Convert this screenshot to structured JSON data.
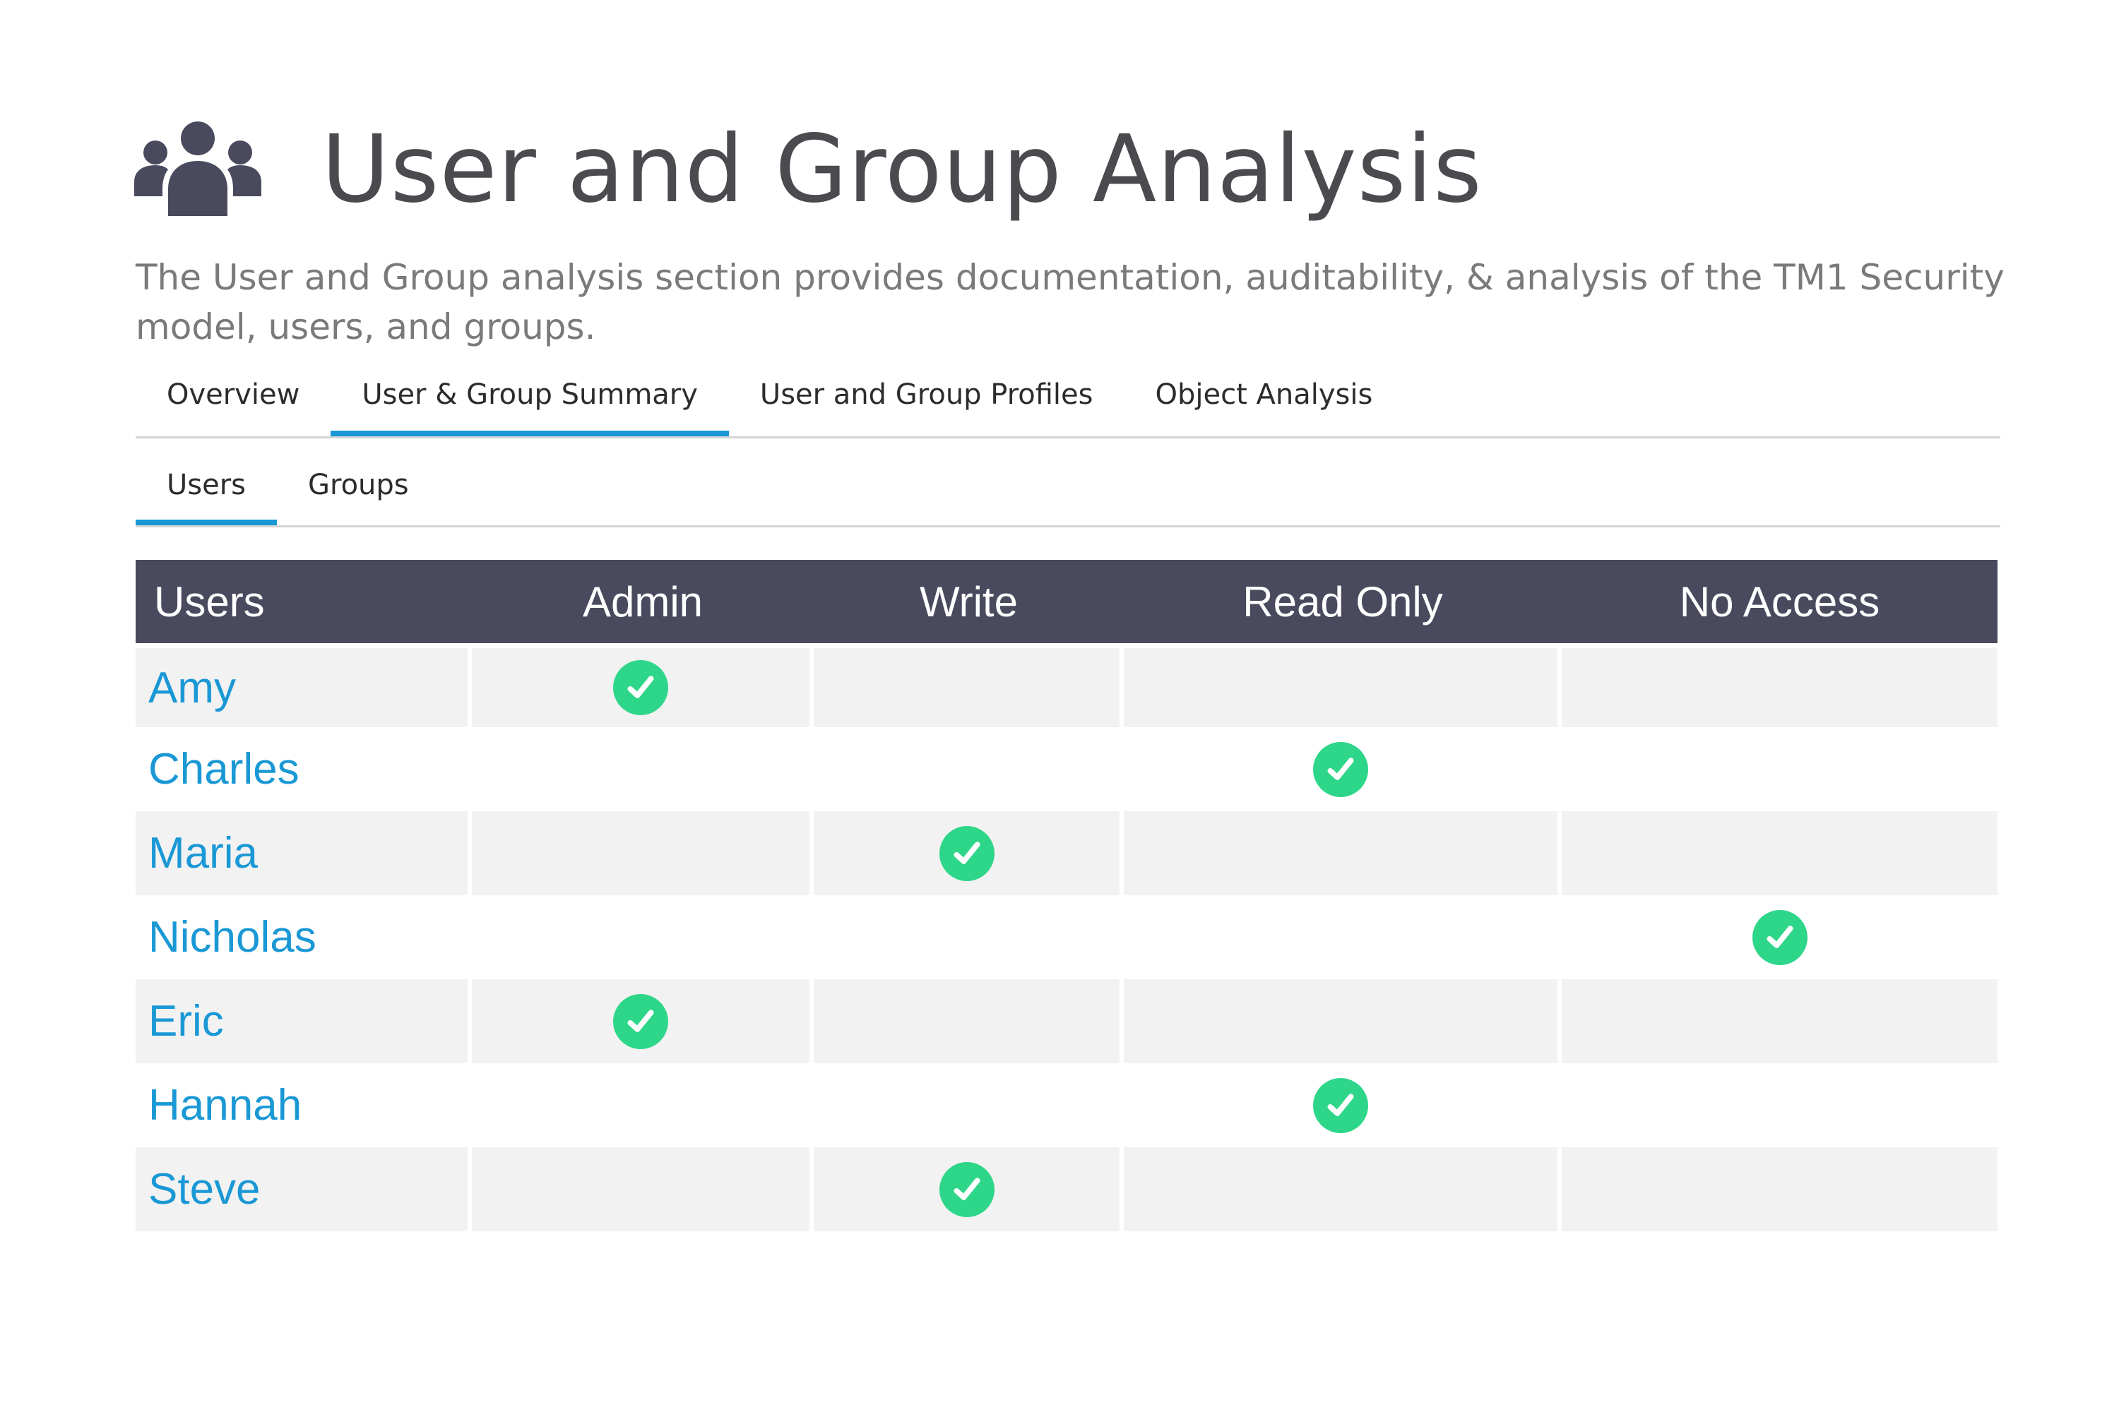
{
  "header": {
    "icon": "users-group-icon",
    "title": "User and Group Analysis",
    "description": "The User and Group analysis section provides documentation, auditability, & analysis of the TM1 Security model, users, and groups."
  },
  "tabs": [
    {
      "label": "Overview",
      "active": false
    },
    {
      "label": "User & Group Summary",
      "active": true
    },
    {
      "label": "User and Group Profiles",
      "active": false
    },
    {
      "label": "Object Analysis",
      "active": false
    }
  ],
  "subtabs": [
    {
      "label": "Users",
      "active": true
    },
    {
      "label": "Groups",
      "active": false
    }
  ],
  "table": {
    "columns": [
      "Users",
      "Admin",
      "Write",
      "Read Only",
      "No Access"
    ],
    "rows": [
      {
        "name": "Amy",
        "access": "Admin"
      },
      {
        "name": "Charles",
        "access": "Read Only"
      },
      {
        "name": "Maria",
        "access": "Write"
      },
      {
        "name": "Nicholas",
        "access": "No Access"
      },
      {
        "name": "Eric",
        "access": "Admin"
      },
      {
        "name": "Hannah",
        "access": "Read Only"
      },
      {
        "name": "Steve",
        "access": "Write"
      }
    ]
  },
  "colors": {
    "header_bg": "#4a4a5e",
    "accent": "#1a98d5",
    "check": "#2ed68a",
    "row_alt": "#f2f2f2"
  }
}
